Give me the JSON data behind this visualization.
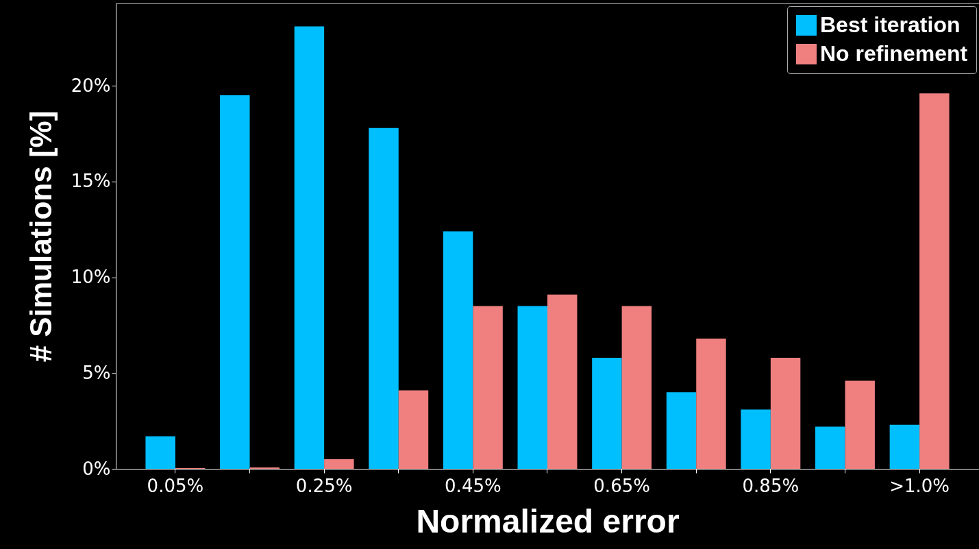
{
  "chart_data": {
    "type": "bar",
    "xlabel": "Normalized error",
    "ylabel": "# Simulations [%]",
    "categories": [
      "0.05%",
      null,
      "0.25%",
      null,
      "0.45%",
      null,
      "0.65%",
      null,
      "0.85%",
      null,
      ">1.0%"
    ],
    "series": [
      {
        "name": "Best iteration",
        "color": "#00bfff",
        "values": [
          1.7,
          19.5,
          23.1,
          17.8,
          12.4,
          8.5,
          5.8,
          4.0,
          3.1,
          2.2,
          2.3
        ]
      },
      {
        "name": "No refinement",
        "color": "#f08080",
        "values": [
          0.04,
          0.07,
          0.5,
          4.1,
          8.5,
          9.1,
          8.5,
          6.8,
          5.8,
          4.6,
          19.6
        ]
      }
    ],
    "ylim": [
      0,
      24.3
    ],
    "yticks": [
      {
        "value": 0,
        "label": "0%"
      },
      {
        "value": 5,
        "label": "5%"
      },
      {
        "value": 10,
        "label": "10%"
      },
      {
        "value": 15,
        "label": "15%"
      },
      {
        "value": 20,
        "label": "20%"
      }
    ],
    "grid": false,
    "legend": "top right"
  }
}
